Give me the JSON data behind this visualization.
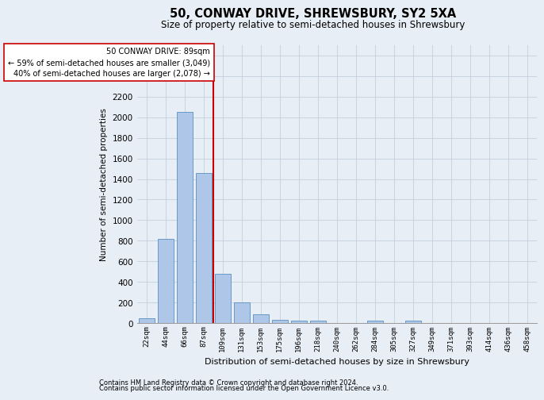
{
  "title": "50, CONWAY DRIVE, SHREWSBURY, SY2 5XA",
  "subtitle": "Size of property relative to semi-detached houses in Shrewsbury",
  "xlabel": "Distribution of semi-detached houses by size in Shrewsbury",
  "ylabel": "Number of semi-detached properties",
  "footer1": "Contains HM Land Registry data © Crown copyright and database right 2024.",
  "footer2": "Contains public sector information licensed under the Open Government Licence v3.0.",
  "bar_labels": [
    "22sqm",
    "44sqm",
    "66sqm",
    "87sqm",
    "109sqm",
    "131sqm",
    "153sqm",
    "175sqm",
    "196sqm",
    "218sqm",
    "240sqm",
    "262sqm",
    "284sqm",
    "305sqm",
    "327sqm",
    "349sqm",
    "371sqm",
    "393sqm",
    "414sqm",
    "436sqm",
    "458sqm"
  ],
  "bar_values": [
    50,
    820,
    2050,
    1460,
    480,
    200,
    85,
    30,
    20,
    20,
    0,
    0,
    25,
    0,
    20,
    0,
    0,
    0,
    0,
    0,
    0
  ],
  "bar_color": "#aec6e8",
  "bar_edge_color": "#5a8fc0",
  "property_line_x": 3.5,
  "annotation_text_line1": "50 CONWAY DRIVE: 89sqm",
  "annotation_text_line2": "← 59% of semi-detached houses are smaller (3,049)",
  "annotation_text_line3": "40% of semi-detached houses are larger (2,078) →",
  "vline_color": "#cc0000",
  "annotation_box_color": "#ffffff",
  "annotation_box_edge": "#cc0000",
  "grid_color": "#c8d4e0",
  "bg_color": "#e8eef5",
  "ylim": [
    0,
    2700
  ],
  "yticks": [
    0,
    200,
    400,
    600,
    800,
    1000,
    1200,
    1400,
    1600,
    1800,
    2000,
    2200,
    2400,
    2600
  ]
}
